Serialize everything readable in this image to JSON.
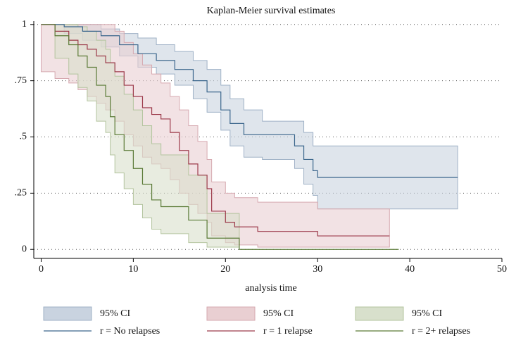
{
  "chart_data": {
    "type": "step",
    "title": "Kaplan-Meier survival estimates",
    "x_label": "analysis time",
    "xlim": [
      -0.8,
      50
    ],
    "xticks": [
      0,
      10,
      20,
      30,
      40,
      50
    ],
    "ylim": [
      -0.04,
      1.015
    ],
    "yticks": [
      0,
      {
        "value": 0.25,
        "label": ".25"
      },
      {
        "value": 0.5,
        "label": ".5"
      },
      {
        "value": 0.75,
        "label": ".75"
      },
      1
    ],
    "grid": true,
    "series": [
      {
        "name": "r = No relapses",
        "color": "#3b668c",
        "ci_name": "95% CI",
        "ci_color": "#c9d3e0",
        "ci_edge": "#9fb1c6",
        "x": [
          0,
          2.5,
          4.5,
          6.5,
          8.5,
          10.5,
          12.5,
          14.5,
          16.5,
          18,
          19.5,
          20.5,
          22,
          24,
          27.5,
          28.5,
          29.5,
          30,
          45.2
        ],
        "values": [
          1,
          0.99,
          0.97,
          0.95,
          0.91,
          0.87,
          0.84,
          0.8,
          0.75,
          0.7,
          0.62,
          0.56,
          0.51,
          0.51,
          0.46,
          0.4,
          0.35,
          0.32,
          0.32
        ],
        "upper": [
          1,
          1,
          1,
          0.98,
          0.96,
          0.94,
          0.91,
          0.88,
          0.84,
          0.8,
          0.73,
          0.67,
          0.62,
          0.57,
          0.57,
          0.52,
          0.46,
          0.46,
          0.46
        ],
        "lower": [
          1,
          0.96,
          0.93,
          0.9,
          0.86,
          0.81,
          0.78,
          0.73,
          0.67,
          0.61,
          0.53,
          0.46,
          0.41,
          0.4,
          0.36,
          0.29,
          0.24,
          0.18,
          0.18
        ]
      },
      {
        "name": "r = 1 relapse",
        "color": "#9c3a4a",
        "ci_name": "95% CI",
        "ci_color": "#e9cfd2",
        "ci_edge": "#d6a9b0",
        "x": [
          0,
          1.5,
          3,
          4,
          5,
          6,
          7,
          8,
          9,
          10,
          11,
          12,
          13,
          14,
          15,
          16,
          17,
          18,
          18.5,
          20,
          21,
          23.5,
          30,
          37.8
        ],
        "values": [
          1,
          0.97,
          0.93,
          0.91,
          0.89,
          0.86,
          0.83,
          0.79,
          0.73,
          0.68,
          0.63,
          0.6,
          0.58,
          0.52,
          0.44,
          0.38,
          0.33,
          0.27,
          0.17,
          0.12,
          0.1,
          0.08,
          0.06,
          0.06
        ],
        "upper": [
          1,
          1,
          1,
          1,
          1,
          1,
          1,
          0.97,
          0.92,
          0.87,
          0.82,
          0.78,
          0.74,
          0.68,
          0.62,
          0.55,
          0.48,
          0.4,
          0.3,
          0.25,
          0.23,
          0.21,
          0.18,
          0.16
        ],
        "lower": [
          0.79,
          0.76,
          0.74,
          0.71,
          0.68,
          0.65,
          0.62,
          0.57,
          0.51,
          0.46,
          0.41,
          0.38,
          0.36,
          0.31,
          0.25,
          0.2,
          0.16,
          0.12,
          0.06,
          0.03,
          0.02,
          0.01,
          0.01,
          0.01
        ]
      },
      {
        "name": "r = 2+ relapses",
        "color": "#5a7a36",
        "ci_name": "95% CI",
        "ci_color": "#d8e0cc",
        "ci_edge": "#b3c49e",
        "x": [
          0,
          1.5,
          3,
          4,
          5,
          6,
          7,
          7.5,
          8,
          9,
          10,
          11,
          12,
          13,
          16,
          18,
          21.5,
          38.8
        ],
        "values": [
          1,
          0.95,
          0.91,
          0.86,
          0.81,
          0.73,
          0.68,
          0.59,
          0.51,
          0.44,
          0.36,
          0.29,
          0.22,
          0.19,
          0.13,
          0.05,
          0,
          0
        ],
        "upper": [
          1,
          1,
          1,
          0.99,
          0.97,
          0.93,
          0.89,
          0.83,
          0.77,
          0.69,
          0.62,
          0.55,
          0.47,
          0.42,
          0.33,
          0.16,
          0.16,
          null
        ],
        "lower": [
          1,
          0.85,
          0.78,
          0.72,
          0.66,
          0.57,
          0.52,
          0.42,
          0.34,
          0.27,
          0.2,
          0.14,
          0.09,
          0.07,
          0.03,
          0.01,
          0.01,
          null
        ]
      }
    ]
  }
}
